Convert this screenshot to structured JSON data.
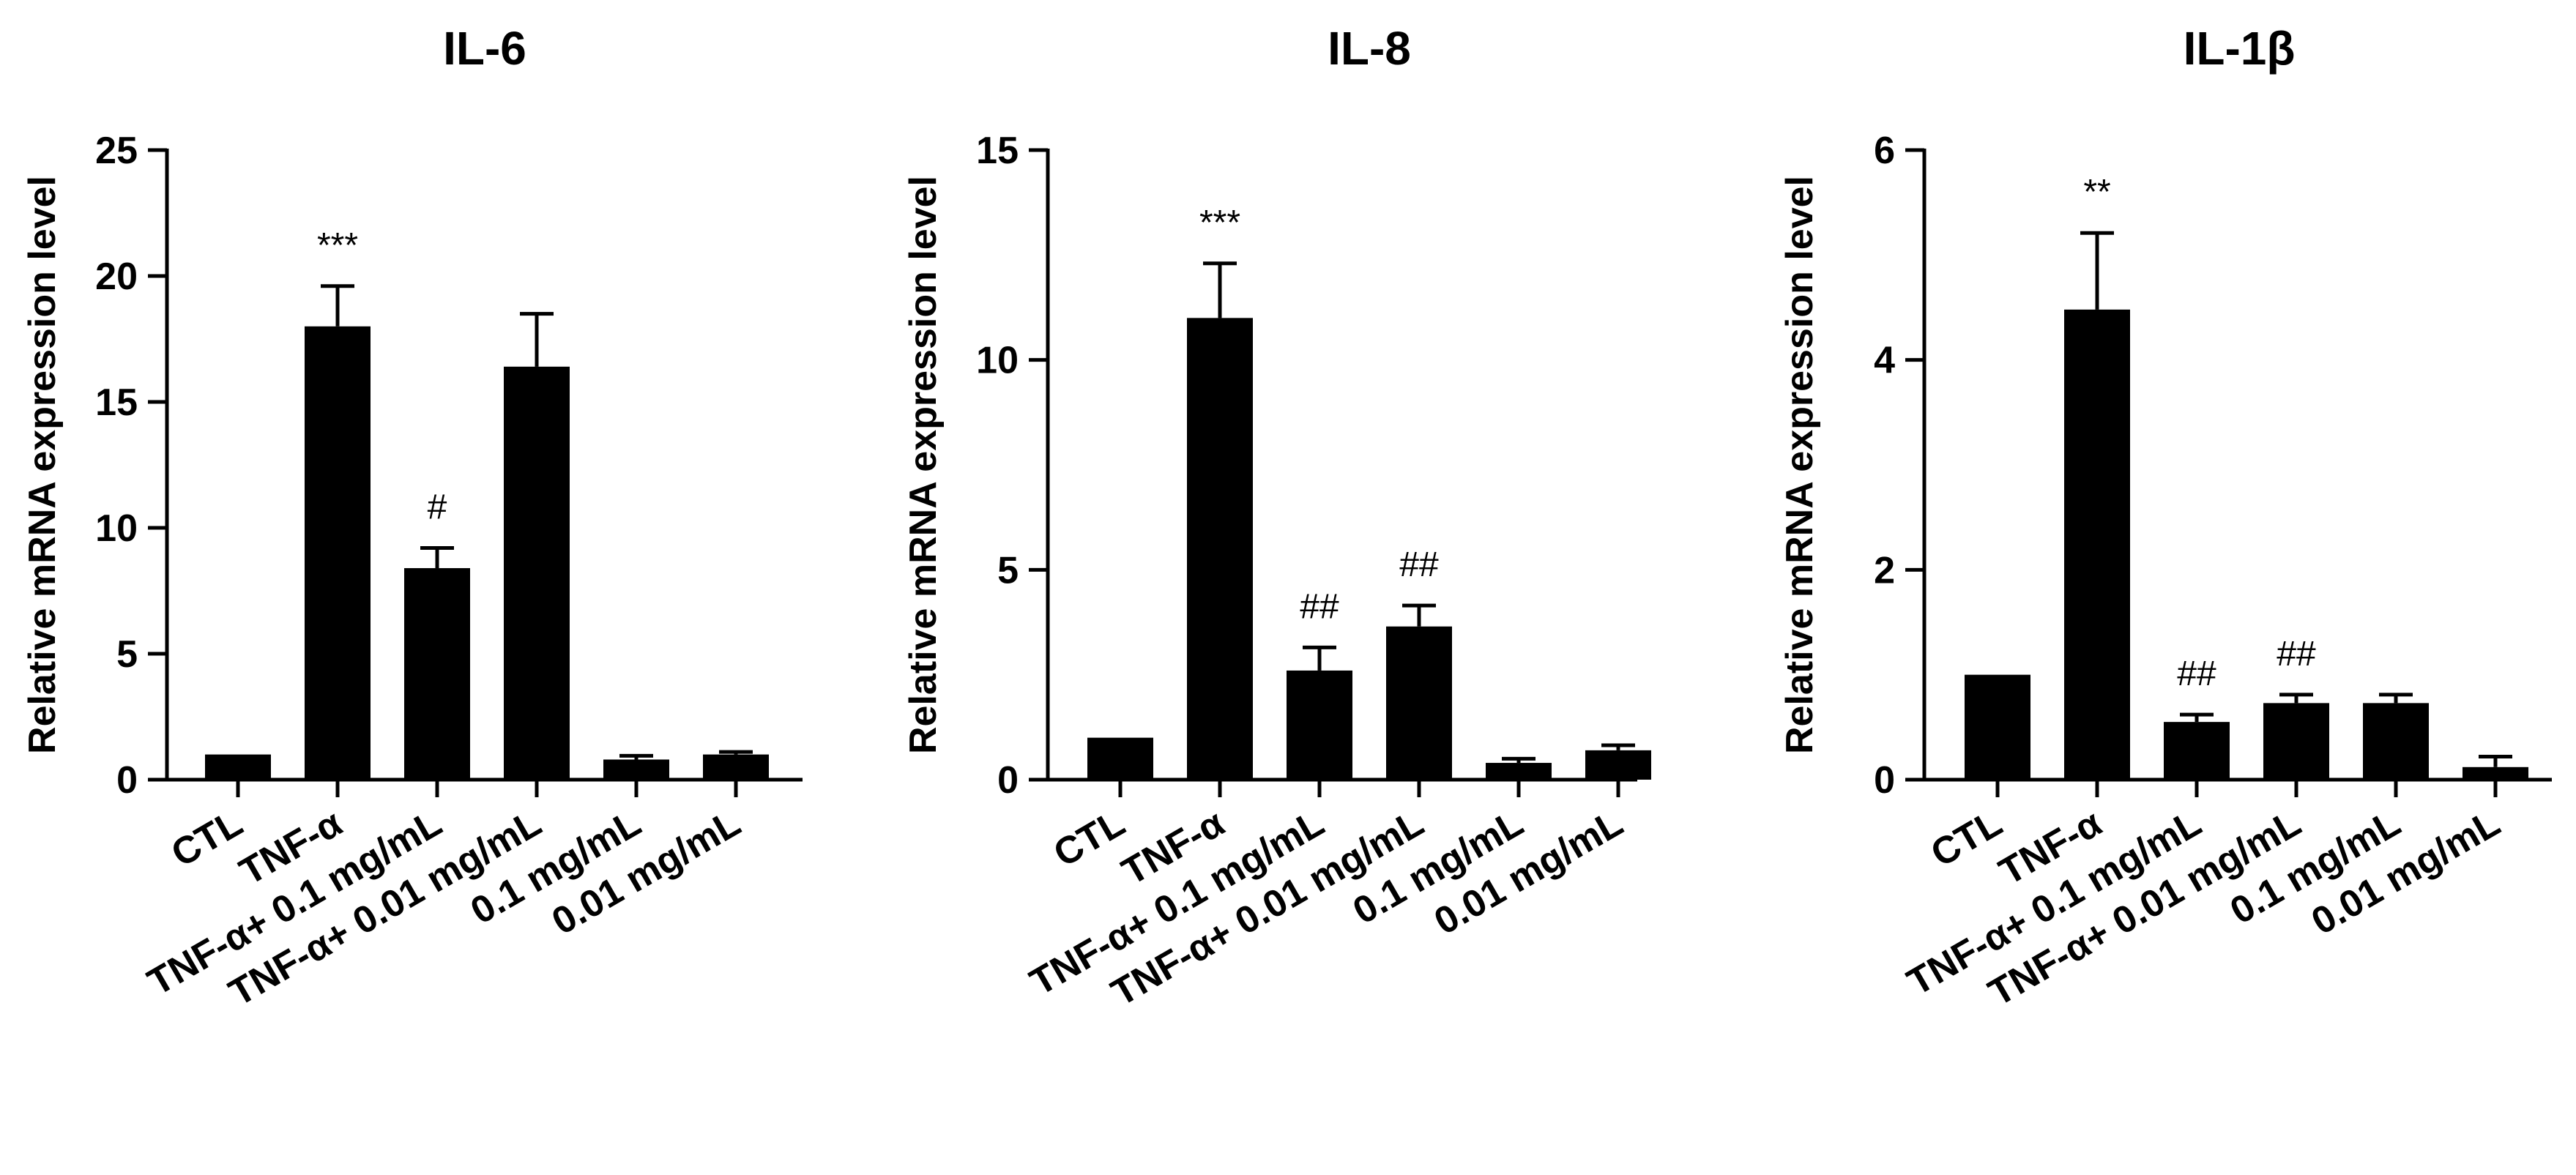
{
  "chart_data": [
    {
      "type": "bar",
      "title": "IL-6",
      "ylabel": "Relative mRNA expression level",
      "xlabel": "",
      "ylim": [
        0,
        25
      ],
      "yticks": [
        0,
        5,
        10,
        15,
        20,
        25
      ],
      "grid": false,
      "bar_color": "#000000",
      "categories": [
        "CTL",
        "TNF-α",
        "TNF-α+ 0.1 mg/mL",
        "TNF-α+ 0.01 mg/mL",
        "0.1 mg/mL",
        "0.01 mg/mL"
      ],
      "values": [
        1.0,
        18.0,
        8.4,
        16.4,
        0.8,
        1.0
      ],
      "errors": [
        0.0,
        1.6,
        0.8,
        2.1,
        0.15,
        0.1
      ],
      "annotations": [
        "",
        "***",
        "#",
        "",
        "",
        ""
      ]
    },
    {
      "type": "bar",
      "title": "IL-8",
      "ylabel": "Relative mRNA expression level",
      "xlabel": "",
      "ylim": [
        0,
        15
      ],
      "yticks": [
        0,
        5,
        10,
        15
      ],
      "grid": false,
      "bar_color": "#000000",
      "categories": [
        "CTL",
        "TNF-α",
        "TNF-α+ 0.1 mg/mL",
        "TNF-α+ 0.01 mg/mL",
        "0.1 mg/mL",
        "0.01 mg/mL"
      ],
      "values": [
        1.0,
        11.0,
        2.6,
        3.65,
        0.4,
        0.7
      ],
      "errors": [
        0.0,
        1.3,
        0.55,
        0.5,
        0.1,
        0.12
      ],
      "annotations": [
        "",
        "***",
        "##",
        "##",
        "",
        ""
      ]
    },
    {
      "type": "bar",
      "title": "IL-1β",
      "ylabel": "Relative mRNA expression level",
      "xlabel": "",
      "ylim": [
        0,
        6
      ],
      "yticks": [
        0,
        2,
        4,
        6
      ],
      "grid": false,
      "bar_color": "#000000",
      "categories": [
        "CTL",
        "TNF-α",
        "TNF-α+ 0.1 mg/mL",
        "TNF-α+ 0.01 mg/mL",
        "0.1 mg/mL",
        "0.01 mg/mL"
      ],
      "values": [
        1.0,
        4.48,
        0.55,
        0.73,
        0.73,
        0.12
      ],
      "errors": [
        0.0,
        0.73,
        0.07,
        0.08,
        0.08,
        0.1
      ],
      "annotations": [
        "",
        "**",
        "##",
        "##",
        "",
        ""
      ]
    }
  ]
}
